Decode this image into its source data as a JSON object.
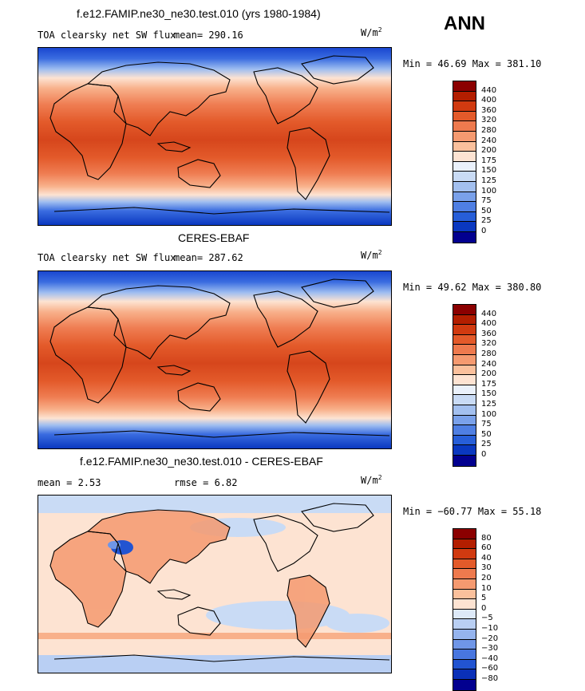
{
  "season": "ANN",
  "units": "W/m",
  "units_exp": "2",
  "panels": [
    {
      "title": "f.e12.FAMIP.ne30_ne30.test.010 (yrs 1980-1984)",
      "variable": "TOA clearsky net SW flux",
      "stat1": "mean= 290.16",
      "stat2": "",
      "minmax": "Min =  46.69 Max = 381.10",
      "kind": "abs"
    },
    {
      "title": "CERES-EBAF",
      "variable": "TOA clearsky net SW flux",
      "stat1": "mean= 287.62",
      "stat2": "",
      "minmax": "Min =  49.62 Max = 380.80",
      "kind": "abs"
    },
    {
      "title": "f.e12.FAMIP.ne30_ne30.test.010 - CERES-EBAF",
      "variable": "",
      "stat1": "mean =   2.53",
      "stat2": "rmse =   6.82",
      "minmax": "Min = −60.77 Max =  55.18",
      "kind": "diff"
    }
  ],
  "colorbars": {
    "abs": {
      "labels": [
        "440",
        "400",
        "360",
        "320",
        "280",
        "240",
        "200",
        "175",
        "150",
        "125",
        "100",
        "75",
        "50",
        "25",
        "0"
      ],
      "colors": [
        "#8b0000",
        "#b31e00",
        "#d13a10",
        "#e35a2a",
        "#ee7a4e",
        "#f59a70",
        "#fac09c",
        "#fde3d2",
        "#eaf1fb",
        "#c9dbf5",
        "#a3c0ef",
        "#7aa1ea",
        "#4f7fe3",
        "#275ed8",
        "#0a38c0",
        "#02008f"
      ]
    },
    "diff": {
      "labels": [
        "80",
        "60",
        "40",
        "30",
        "20",
        "10",
        "5",
        "0",
        "−5",
        "−10",
        "−20",
        "−30",
        "−40",
        "−60",
        "−80"
      ],
      "colors": [
        "#8b0000",
        "#b31e00",
        "#d13a10",
        "#e35a2a",
        "#ee7a4e",
        "#f59a70",
        "#fac09c",
        "#fde3d2",
        "#dde9f8",
        "#b9cff3",
        "#95b4ee",
        "#6f96e7",
        "#4876df",
        "#2254d1",
        "#0a30b8",
        "#02008f"
      ]
    }
  }
}
